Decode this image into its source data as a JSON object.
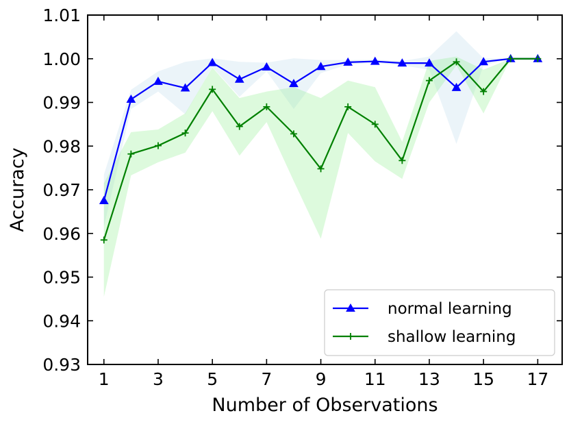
{
  "chart_data": {
    "type": "line",
    "title": "",
    "xlabel": "Number of Observations",
    "ylabel": "Accuracy",
    "xlim": [
      0.4,
      17.9
    ],
    "ylim": [
      0.93,
      1.01
    ],
    "xticks": [
      1,
      3,
      5,
      7,
      9,
      11,
      13,
      15,
      17
    ],
    "xtick_labels": [
      "1",
      "3",
      "5",
      "7",
      "9",
      "11",
      "13",
      "15",
      "17"
    ],
    "yticks": [
      0.93,
      0.94,
      0.95,
      0.96,
      0.97,
      0.98,
      0.99,
      1.0,
      1.01
    ],
    "ytick_labels": [
      "0.93",
      "0.94",
      "0.95",
      "0.96",
      "0.97",
      "0.98",
      "0.99",
      "1.00",
      "1.01"
    ],
    "grid": false,
    "legend_position": "bottom-right",
    "x": [
      1,
      2,
      3,
      4,
      5,
      6,
      7,
      8,
      9,
      10,
      11,
      12,
      13,
      14,
      15,
      16,
      17
    ],
    "series": [
      {
        "name": "normal learning",
        "color": "#0000ff",
        "band_color": "#a6cee3",
        "marker": "triangle",
        "values": [
          0.9675,
          0.9907,
          0.9948,
          0.9933,
          0.9991,
          0.9953,
          0.9981,
          0.9943,
          0.9982,
          0.9992,
          0.9994,
          0.999,
          0.999,
          0.9934,
          0.9993,
          1.0,
          1.0
        ],
        "lower": [
          0.9615,
          0.9885,
          0.9925,
          0.9873,
          0.9981,
          0.9913,
          0.9971,
          0.9885,
          0.9967,
          0.9987,
          0.999,
          0.9985,
          0.9975,
          0.9805,
          0.9985,
          1.0,
          1.0
        ],
        "upper": [
          0.9735,
          0.9929,
          0.9971,
          0.9993,
          1.0001,
          0.9993,
          0.9991,
          1.0001,
          0.9997,
          0.9997,
          0.9998,
          0.9995,
          1.0005,
          1.0063,
          1.0001,
          1.0,
          1.0
        ]
      },
      {
        "name": "shallow learning",
        "color": "#008000",
        "band_color": "#90ee90",
        "marker": "plus",
        "values": [
          0.9585,
          0.9782,
          0.9801,
          0.983,
          0.993,
          0.9845,
          0.989,
          0.9828,
          0.9748,
          0.989,
          0.985,
          0.9767,
          0.995,
          0.9993,
          0.9925,
          1.0,
          1.0
        ],
        "lower": [
          0.9455,
          0.9733,
          0.9763,
          0.9785,
          0.988,
          0.9778,
          0.9855,
          0.972,
          0.9588,
          0.983,
          0.9765,
          0.9725,
          0.99,
          0.9985,
          0.9875,
          1.0,
          1.0
        ],
        "upper": [
          0.9715,
          0.9832,
          0.9838,
          0.9875,
          0.998,
          0.991,
          0.9925,
          0.9935,
          0.991,
          0.995,
          0.9935,
          0.981,
          0.9995,
          1.0005,
          0.9975,
          1.0,
          1.0
        ]
      }
    ]
  }
}
